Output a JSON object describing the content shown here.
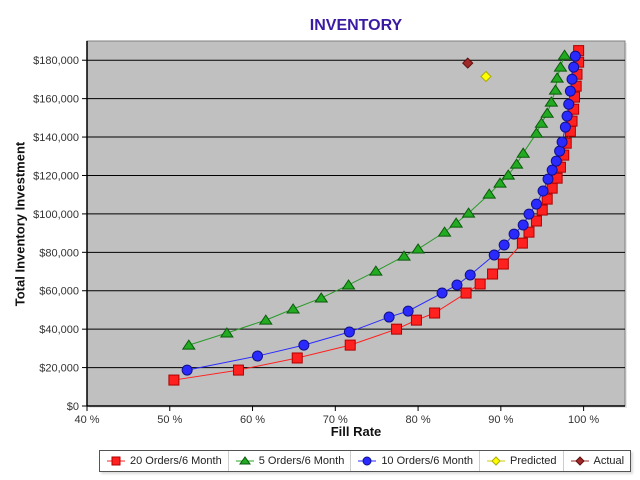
{
  "chart_data": {
    "type": "scatter",
    "title": "INVENTORY",
    "xlabel": "Fill Rate",
    "ylabel": "Total Inventory Investment",
    "xlim": [
      40,
      105
    ],
    "ylim": [
      0,
      190000
    ],
    "x_ticks": [
      "40 %",
      "50 %",
      "60 %",
      "70 %",
      "80 %",
      "90 %",
      "100 %"
    ],
    "y_ticks": [
      "$0",
      "$20,000",
      "$40,000",
      "$60,000",
      "$80,000",
      "$100,000",
      "$120,000",
      "$140,000",
      "$160,000",
      "$180,000"
    ],
    "grid": "horizontal",
    "legend_position": "bottom",
    "series": [
      {
        "name": "20 Orders/6 Month",
        "color": "#ff2020",
        "marker": "square",
        "x": [
          50.5,
          58.3,
          65.4,
          71.8,
          77.4,
          79.8,
          82.0,
          85.8,
          87.5,
          89.0,
          90.3,
          92.6,
          93.4,
          94.3,
          95.0,
          95.6,
          96.2,
          96.8,
          97.2,
          97.6,
          97.9,
          98.4,
          98.6,
          98.8,
          98.9,
          99.1,
          99.2,
          99.4,
          99.4
        ],
        "y": [
          13500,
          18700,
          25000,
          31700,
          40000,
          44700,
          48400,
          58800,
          63500,
          68700,
          73900,
          84800,
          90500,
          96300,
          102000,
          107700,
          113400,
          118600,
          124300,
          130600,
          136800,
          143000,
          148300,
          154500,
          160800,
          166500,
          172700,
          179000,
          185000
        ]
      },
      {
        "name": "5 Orders/6 Month",
        "color": "#22aa22",
        "marker": "triangle",
        "x": [
          52.3,
          56.9,
          61.6,
          64.9,
          68.3,
          71.6,
          74.9,
          78.3,
          80.0,
          83.2,
          84.6,
          86.1,
          88.6,
          89.9,
          90.9,
          91.9,
          92.7,
          94.3,
          94.9,
          95.6,
          96.1,
          96.6,
          96.8,
          97.2,
          97.7
        ],
        "y": [
          31700,
          38000,
          44700,
          50500,
          56200,
          63000,
          70200,
          78000,
          81700,
          90500,
          95200,
          100400,
          110300,
          116000,
          120200,
          125900,
          131600,
          142000,
          147200,
          152400,
          158200,
          164400,
          170700,
          176400,
          182600
        ]
      },
      {
        "name": "10 Orders/6 Month",
        "color": "#2a2aff",
        "marker": "circle",
        "x": [
          52.1,
          60.6,
          66.2,
          71.7,
          76.5,
          78.8,
          82.9,
          84.7,
          86.3,
          89.2,
          90.4,
          91.6,
          92.7,
          93.4,
          94.3,
          95.1,
          95.7,
          96.2,
          96.7,
          97.1,
          97.4,
          97.8,
          98.0,
          98.2,
          98.4,
          98.6,
          98.8,
          99.0
        ],
        "y": [
          18700,
          26000,
          31700,
          38500,
          46300,
          49400,
          58800,
          63000,
          68200,
          78600,
          83800,
          89500,
          94200,
          99900,
          105100,
          111900,
          118100,
          122800,
          127500,
          132700,
          137400,
          145200,
          150900,
          157100,
          163900,
          170100,
          176400,
          182100
        ]
      },
      {
        "name": "Predicted",
        "color": "#ffff00",
        "marker": "diamond",
        "x": [
          88.2
        ],
        "y": [
          171500
        ]
      },
      {
        "name": "Actual",
        "color": "#a02828",
        "marker": "diamond",
        "x": [
          86.0
        ],
        "y": [
          178500
        ]
      }
    ]
  }
}
